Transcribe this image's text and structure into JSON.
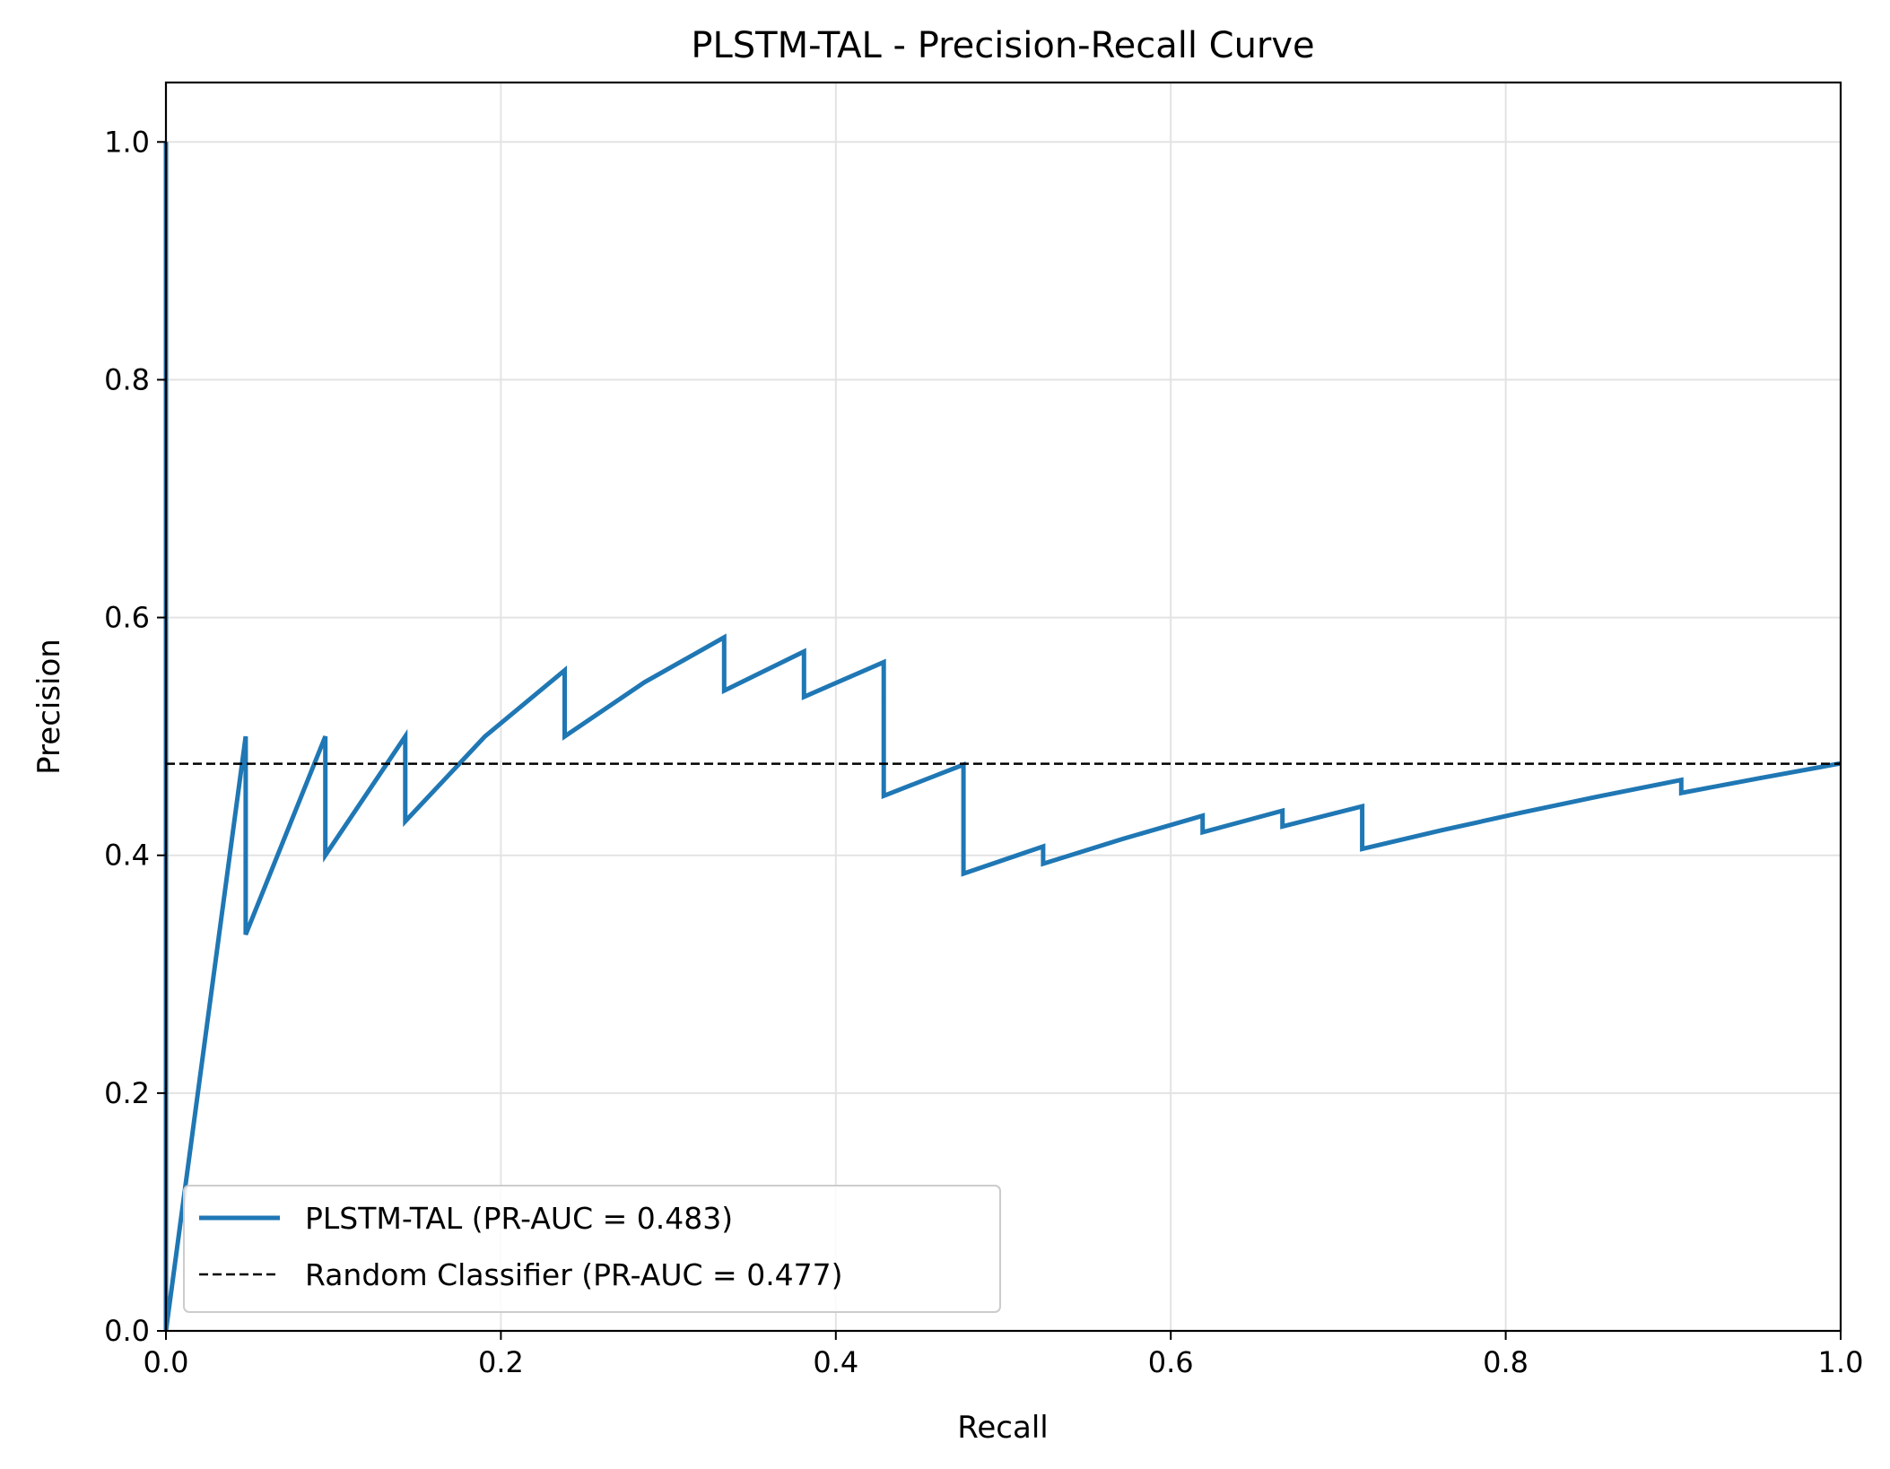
{
  "chart_data": {
    "type": "line",
    "title": "PLSTM-TAL - Precision-Recall Curve",
    "xlabel": "Recall",
    "ylabel": "Precision",
    "xlim": [
      0.0,
      1.0
    ],
    "ylim": [
      0.0,
      1.05
    ],
    "grid": true,
    "legend_position": "lower-left",
    "xticks": [
      0.0,
      0.2,
      0.4,
      0.6,
      0.8,
      1.0
    ],
    "yticks": [
      0.0,
      0.2,
      0.4,
      0.6,
      0.8,
      1.0
    ],
    "xtick_labels": [
      "0.0",
      "0.2",
      "0.4",
      "0.6",
      "0.8",
      "1.0"
    ],
    "ytick_labels": [
      "0.0",
      "0.2",
      "0.4",
      "0.6",
      "0.8",
      "1.0"
    ],
    "series": [
      {
        "name": "PLSTM-TAL (PR-AUC = 0.483)",
        "color": "#1f77b4",
        "style": "solid",
        "x": [
          0.0,
          0.0,
          0.0,
          0.0476,
          0.0476,
          0.0952,
          0.0952,
          0.1429,
          0.1429,
          0.1905,
          0.2381,
          0.2381,
          0.2857,
          0.3333,
          0.3333,
          0.381,
          0.381,
          0.4286,
          0.4286,
          0.4762,
          0.4762,
          0.5238,
          0.5238,
          0.5714,
          0.619,
          0.619,
          0.6667,
          0.6667,
          0.7143,
          0.7143,
          0.7619,
          0.8095,
          0.8571,
          0.9048,
          0.9048,
          0.9524,
          1.0
        ],
        "y": [
          1.0,
          0.0,
          0.0,
          0.5,
          0.3333,
          0.5,
          0.4,
          0.5,
          0.4286,
          0.5,
          0.5556,
          0.5,
          0.5455,
          0.5833,
          0.5385,
          0.5714,
          0.5333,
          0.5625,
          0.45,
          0.4762,
          0.3846,
          0.4074,
          0.3929,
          0.4138,
          0.4333,
          0.4194,
          0.4375,
          0.4242,
          0.4412,
          0.4054,
          0.4211,
          0.4359,
          0.45,
          0.4634,
          0.4524,
          0.4651,
          0.4773
        ]
      },
      {
        "name": "Random Classifier (PR-AUC = 0.477)",
        "color": "#000000",
        "style": "dashed",
        "x": [
          0.0,
          1.0
        ],
        "y": [
          0.477,
          0.477
        ]
      }
    ]
  }
}
